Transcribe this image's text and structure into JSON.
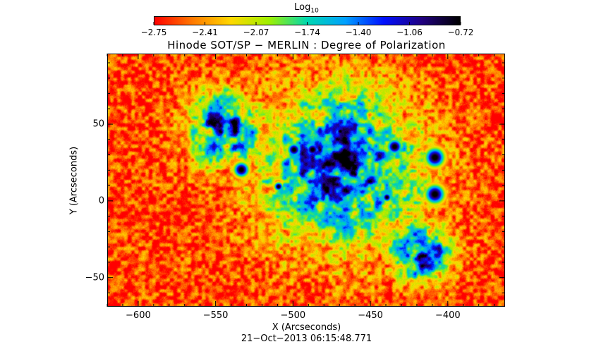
{
  "colorbar": {
    "title_main": "Log",
    "title_sub": "10",
    "tick_labels": [
      "−2.75",
      "−2.41",
      "−2.07",
      "−1.74",
      "−1.40",
      "−1.06",
      "−0.72"
    ],
    "range": [
      -2.75,
      -0.72
    ],
    "colors": [
      "#ff0000",
      "#ff7a00",
      "#ffd800",
      "#9ff000",
      "#00d8b0",
      "#00a0ff",
      "#0010ff",
      "#200080",
      "#000000"
    ]
  },
  "chart_data": {
    "type": "heatmap",
    "title": "Hinode SOT/SP − MERLIN : Degree of Polarization",
    "xlabel": "X (Arcseconds)",
    "ylabel": "Y (Arcseconds)",
    "xlim": [
      -620,
      -363
    ],
    "ylim": [
      -69,
      96
    ],
    "x_ticks": [
      -600,
      -550,
      -500,
      -450,
      -400
    ],
    "x_tick_labels": [
      "−600",
      "−550",
      "−500",
      "−450",
      "−400"
    ],
    "y_ticks": [
      50,
      0,
      -50
    ],
    "y_tick_labels": [
      "50",
      "0",
      "−50"
    ],
    "value_label": "Log10 degree of polarization",
    "value_range": [
      -2.75,
      -0.72
    ],
    "regions": [
      {
        "feature": "umbra",
        "x": -409,
        "y": 29,
        "r": 9
      },
      {
        "feature": "umbra",
        "x": -409,
        "y": 5,
        "r": 9
      },
      {
        "feature": "umbra",
        "x": -435,
        "y": 36,
        "r": 7
      },
      {
        "feature": "umbra",
        "x": -500,
        "y": 34,
        "r": 6
      },
      {
        "feature": "umbra",
        "x": -534,
        "y": 21,
        "r": 7
      },
      {
        "feature": "umbra",
        "x": -462,
        "y": 19,
        "r": 6
      },
      {
        "feature": "umbra",
        "x": -470,
        "y": 46,
        "r": 4
      },
      {
        "feature": "umbra",
        "x": -488,
        "y": 34,
        "r": 6
      },
      {
        "feature": "umbra",
        "x": -510,
        "y": 10,
        "r": 4
      },
      {
        "feature": "umbra",
        "x": -440,
        "y": 3,
        "r": 4
      },
      {
        "feature": "plage",
        "x": -470,
        "y": 22,
        "r": 52
      },
      {
        "feature": "plage",
        "x": -418,
        "y": -32,
        "r": 20
      },
      {
        "feature": "plage",
        "x": -545,
        "y": 48,
        "r": 24
      }
    ]
  },
  "footer": {
    "timestamp": "21−Oct−2013 06:15:48.771"
  }
}
